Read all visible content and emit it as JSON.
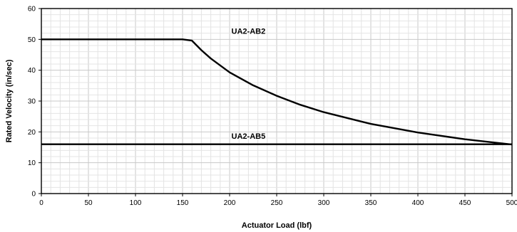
{
  "chart_data": {
    "type": "line",
    "title": "",
    "xlabel": "Actuator Load (lbf)",
    "ylabel": "Rated Velocity (in/sec)",
    "xlim": [
      0,
      500
    ],
    "ylim": [
      0,
      60
    ],
    "x_ticks": [
      0,
      50,
      100,
      150,
      200,
      250,
      300,
      350,
      400,
      450,
      500
    ],
    "y_ticks": [
      0,
      10,
      20,
      30,
      40,
      50,
      60
    ],
    "grid": true,
    "series": [
      {
        "name": "UA2-AB2",
        "x": [
          0,
          150,
          160,
          170,
          180,
          200,
          225,
          250,
          275,
          300,
          350,
          400,
          450,
          500
        ],
        "y": [
          50,
          50,
          49.6,
          46.5,
          43.8,
          39.3,
          35.1,
          31.7,
          28.8,
          26.4,
          22.6,
          19.8,
          17.6,
          15.9
        ]
      },
      {
        "name": "UA2-AB5",
        "x": [
          0,
          500
        ],
        "y": [
          16,
          16
        ]
      }
    ],
    "annotations": [
      {
        "text": "UA2-AB2",
        "series": "UA2-AB2"
      },
      {
        "text": "UA2-AB5",
        "series": "UA2-AB5"
      }
    ]
  }
}
